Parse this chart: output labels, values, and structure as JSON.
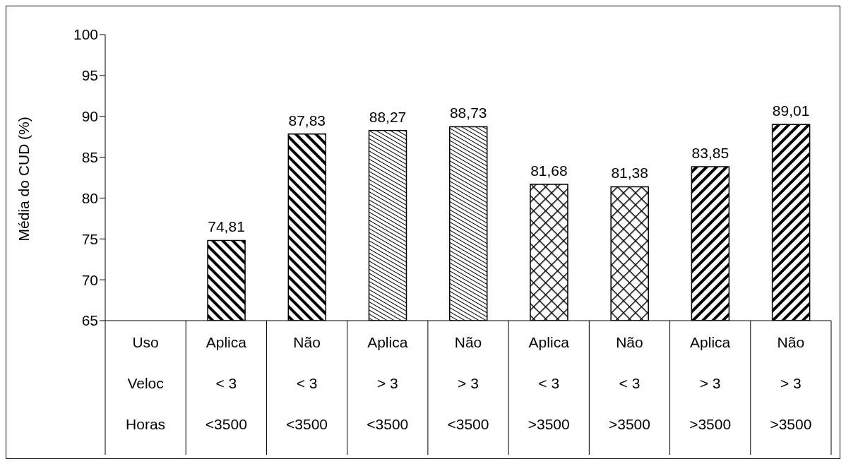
{
  "chart_data": {
    "type": "bar",
    "ylabel": "Média do CUD (%)",
    "categories": [
      "Uso\nVeloc\nHoras",
      "Aplica\n< 3\n<3500",
      "Não\n< 3\n<3500",
      "Aplica\n> 3\n<3500",
      "Não\n> 3\n<3500",
      "Aplica\n< 3\n>3500",
      "Não\n< 3\n>3500",
      "Aplica\n> 3\n>3500",
      "Não\n> 3\n>3500"
    ],
    "values": [
      null,
      74.81,
      87.83,
      88.27,
      88.73,
      81.68,
      81.38,
      83.85,
      89.01
    ],
    "value_labels": [
      null,
      "74,81",
      "87,83",
      "88,27",
      "88,73",
      "81,68",
      "81,38",
      "83,85",
      "89,01"
    ],
    "color": "#000000",
    "ylim": [
      65,
      100
    ],
    "yticks": [
      65,
      70,
      75,
      80,
      85,
      90,
      95,
      100
    ]
  }
}
